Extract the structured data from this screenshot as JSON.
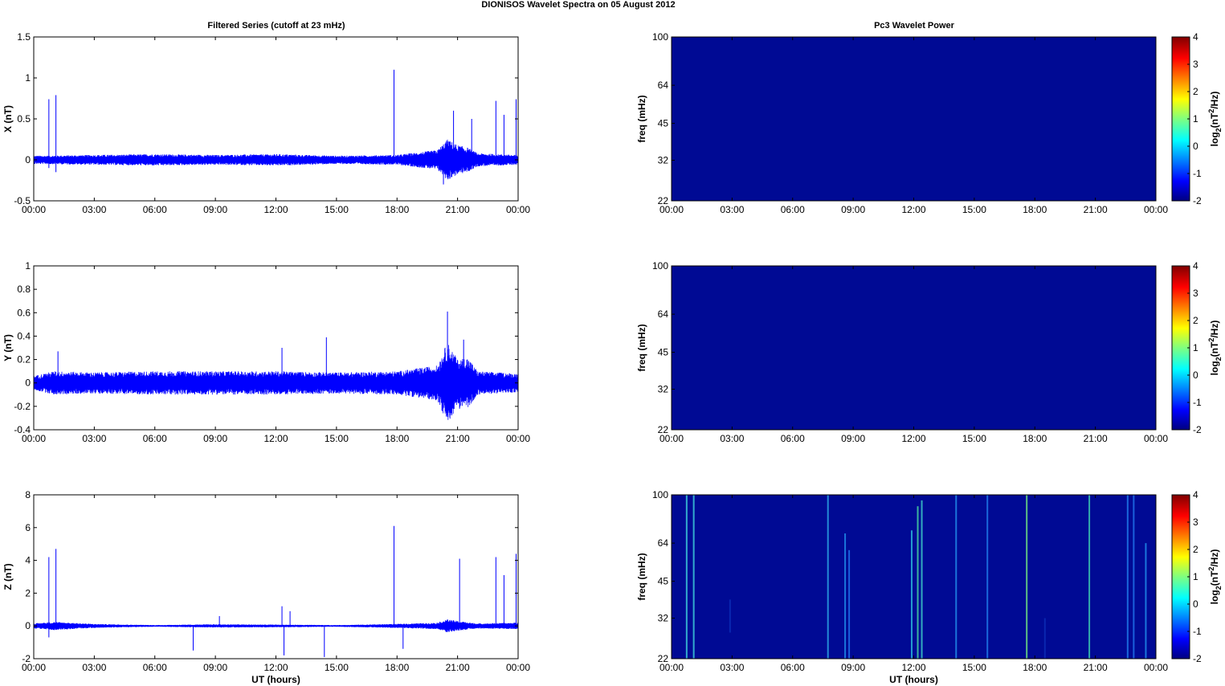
{
  "figure": {
    "title": "DIONISOS Wavelet Spectra on 05 August    2012",
    "left_column_title": "Filtered Series (cutoff at 23 mHz)",
    "right_column_title": "Pc3 Wavelet Power",
    "xlabel": "UT (hours)"
  },
  "chart_data": [
    {
      "type": "line",
      "ylabel": "X (nT)",
      "xlim": [
        0,
        24
      ],
      "ylim": [
        -0.5,
        1.5
      ],
      "xticks": [
        "00:00",
        "03:00",
        "06:00",
        "09:00",
        "12:00",
        "15:00",
        "18:00",
        "21:00",
        "00:00"
      ],
      "yticks": [
        -0.5,
        0,
        0.5,
        1,
        1.5
      ],
      "color": "#0000ff",
      "noise_envelope": [
        [
          0,
          0.05
        ],
        [
          3,
          0.06
        ],
        [
          6,
          0.07
        ],
        [
          9,
          0.06
        ],
        [
          12,
          0.07
        ],
        [
          15,
          0.05
        ],
        [
          18,
          0.06
        ],
        [
          20,
          0.12
        ],
        [
          20.5,
          0.25
        ],
        [
          21,
          0.18
        ],
        [
          21.5,
          0.15
        ],
        [
          22,
          0.08
        ],
        [
          24,
          0.06
        ]
      ],
      "spikes": [
        [
          0.75,
          0.74
        ],
        [
          1.1,
          0.79
        ],
        [
          17.85,
          1.1
        ],
        [
          20.8,
          0.6
        ],
        [
          21.7,
          0.5
        ],
        [
          22.9,
          0.72
        ],
        [
          23.3,
          0.55
        ],
        [
          23.9,
          0.74
        ],
        [
          0.75,
          -0.1
        ],
        [
          1.1,
          -0.15
        ],
        [
          20.3,
          -0.3
        ]
      ],
      "show_xlabel": false
    },
    {
      "type": "line",
      "ylabel": "Y (nT)",
      "xlim": [
        0,
        24
      ],
      "ylim": [
        -0.4,
        1
      ],
      "xticks": [
        "00:00",
        "03:00",
        "06:00",
        "09:00",
        "12:00",
        "15:00",
        "18:00",
        "21:00",
        "00:00"
      ],
      "yticks": [
        -0.4,
        -0.2,
        0,
        0.2,
        0.4,
        0.6,
        0.8,
        1
      ],
      "color": "#0000ff",
      "noise_envelope": [
        [
          0,
          0.06
        ],
        [
          1,
          0.1
        ],
        [
          3,
          0.09
        ],
        [
          6,
          0.1
        ],
        [
          9,
          0.1
        ],
        [
          12,
          0.1
        ],
        [
          15,
          0.09
        ],
        [
          18,
          0.1
        ],
        [
          20,
          0.15
        ],
        [
          20.5,
          0.35
        ],
        [
          21,
          0.2
        ],
        [
          21.5,
          0.22
        ],
        [
          22,
          0.1
        ],
        [
          24,
          0.08
        ]
      ],
      "spikes": [
        [
          1.2,
          0.27
        ],
        [
          12.3,
          0.3
        ],
        [
          14.5,
          0.39
        ],
        [
          20.5,
          0.61
        ],
        [
          21.3,
          0.37
        ],
        [
          20.5,
          -0.29
        ],
        [
          21.1,
          -0.22
        ]
      ],
      "show_xlabel": false
    },
    {
      "type": "line",
      "ylabel": "Z (nT)",
      "xlim": [
        0,
        24
      ],
      "ylim": [
        -2,
        8
      ],
      "xticks": [
        "00:00",
        "03:00",
        "06:00",
        "09:00",
        "12:00",
        "15:00",
        "18:00",
        "21:00",
        "00:00"
      ],
      "yticks": [
        -2,
        0,
        2,
        4,
        6,
        8
      ],
      "color": "#0000ff",
      "noise_envelope": [
        [
          0,
          0.15
        ],
        [
          1,
          0.25
        ],
        [
          3,
          0.12
        ],
        [
          6,
          0.05
        ],
        [
          9,
          0.1
        ],
        [
          12,
          0.08
        ],
        [
          15,
          0.05
        ],
        [
          18,
          0.12
        ],
        [
          20,
          0.2
        ],
        [
          20.5,
          0.4
        ],
        [
          21,
          0.3
        ],
        [
          22,
          0.15
        ],
        [
          24,
          0.2
        ]
      ],
      "spikes": [
        [
          0.75,
          4.2
        ],
        [
          1.1,
          4.7
        ],
        [
          9.2,
          0.6
        ],
        [
          12.3,
          1.2
        ],
        [
          12.7,
          0.9
        ],
        [
          17.85,
          6.1
        ],
        [
          21.1,
          4.1
        ],
        [
          22.9,
          4.2
        ],
        [
          23.3,
          3.1
        ],
        [
          23.9,
          4.4
        ],
        [
          7.9,
          -1.5
        ],
        [
          12.4,
          -1.8
        ],
        [
          14.4,
          -1.9
        ],
        [
          18.3,
          -1.4
        ],
        [
          0.75,
          -0.7
        ]
      ],
      "show_xlabel": true
    },
    {
      "type": "heatmap",
      "ylabel": "freq (mHz)",
      "xlim": [
        0,
        24
      ],
      "yticks": [
        22,
        32,
        45,
        64,
        100
      ],
      "xticks": [
        "00:00",
        "03:00",
        "06:00",
        "09:00",
        "12:00",
        "15:00",
        "18:00",
        "21:00",
        "00:00"
      ],
      "colorbar_label": "log2(nT2/Hz)",
      "colorbar_ticks": [
        -2,
        -1,
        0,
        1,
        2,
        3,
        4
      ],
      "background": "#000a94",
      "streaks": [],
      "show_xlabel": false
    },
    {
      "type": "heatmap",
      "ylabel": "freq (mHz)",
      "xlim": [
        0,
        24
      ],
      "yticks": [
        22,
        32,
        45,
        64,
        100
      ],
      "xticks": [
        "00:00",
        "03:00",
        "06:00",
        "09:00",
        "12:00",
        "15:00",
        "18:00",
        "21:00",
        "00:00"
      ],
      "colorbar_label": "log2(nT2/Hz)",
      "colorbar_ticks": [
        -2,
        -1,
        0,
        1,
        2,
        3,
        4
      ],
      "background": "#000a94",
      "streaks": [],
      "show_xlabel": false
    },
    {
      "type": "heatmap",
      "ylabel": "freq (mHz)",
      "xlim": [
        0,
        24
      ],
      "yticks": [
        22,
        32,
        45,
        64,
        100
      ],
      "xticks": [
        "00:00",
        "03:00",
        "06:00",
        "09:00",
        "12:00",
        "15:00",
        "18:00",
        "21:00",
        "00:00"
      ],
      "colorbar_label": "log2(nT2/Hz)",
      "colorbar_ticks": [
        -2,
        -1,
        0,
        1,
        2,
        3,
        4
      ],
      "background": "#000a94",
      "streaks": [
        [
          0.75,
          22,
          100,
          "#3cc8d8"
        ],
        [
          1.1,
          22,
          100,
          "#3cc8d8"
        ],
        [
          7.75,
          22,
          100,
          "#2aa0e0"
        ],
        [
          8.6,
          22,
          70,
          "#1e88e8"
        ],
        [
          8.8,
          22,
          60,
          "#1e6ee8"
        ],
        [
          11.9,
          22,
          72,
          "#28b4d8"
        ],
        [
          12.2,
          22,
          90,
          "#46d0a0"
        ],
        [
          12.4,
          22,
          95,
          "#3cc8c8"
        ],
        [
          14.1,
          22,
          100,
          "#1e88e8"
        ],
        [
          15.65,
          22,
          100,
          "#1e78e8"
        ],
        [
          17.6,
          22,
          100,
          "#6ee080"
        ],
        [
          20.7,
          22,
          100,
          "#3cc8b0"
        ],
        [
          22.6,
          22,
          100,
          "#1e78e8"
        ],
        [
          22.9,
          22,
          100,
          "#1e6ee8"
        ],
        [
          23.5,
          22,
          64,
          "#1e88e8"
        ],
        [
          2.9,
          28,
          38,
          "#0a2cb4"
        ],
        [
          18.5,
          22,
          32,
          "#0a2cb4"
        ]
      ],
      "show_xlabel": true
    }
  ]
}
